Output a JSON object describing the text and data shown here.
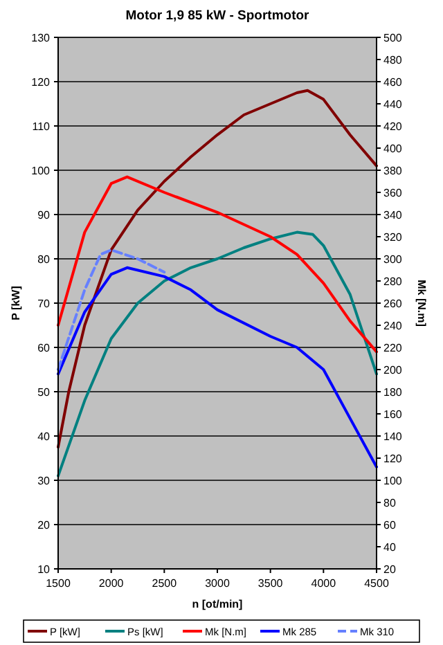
{
  "chart_data": {
    "type": "line",
    "title": "Motor 1,9 85 kW - Sportmotor",
    "xlabel": "n [ot/min]",
    "ylabel": "P [kW]",
    "y2label": "Mk [N.m]",
    "xlim": [
      1500,
      4500
    ],
    "xticks": [
      1500,
      2000,
      2500,
      3000,
      3500,
      4000,
      4500
    ],
    "ylim": [
      10,
      130
    ],
    "yticks": [
      10,
      20,
      30,
      40,
      50,
      60,
      70,
      80,
      90,
      100,
      110,
      120,
      130
    ],
    "y2lim": [
      20,
      500
    ],
    "y2ticks": [
      20,
      40,
      60,
      80,
      100,
      120,
      140,
      160,
      180,
      200,
      220,
      240,
      260,
      280,
      300,
      320,
      340,
      360,
      380,
      400,
      420,
      440,
      460,
      480,
      500
    ],
    "grid": "y",
    "legend": "bottom",
    "marker": "none",
    "series": [
      {
        "name": "P [kW]",
        "color": "#800000",
        "x": [
          1500,
          1600,
          1750,
          2000,
          2250,
          2500,
          2750,
          3000,
          3250,
          3500,
          3750,
          3850,
          4000,
          4250,
          4500
        ],
        "values": [
          37.5,
          50,
          65,
          82,
          91,
          97.5,
          103,
          108,
          112.5,
          115,
          117.5,
          118,
          116,
          108,
          101
        ]
      },
      {
        "name": "Ps [kW]",
        "color": "#008080",
        "x": [
          1500,
          1750,
          2000,
          2250,
          2500,
          2750,
          3000,
          3250,
          3500,
          3750,
          3900,
          4000,
          4250,
          4500
        ],
        "values": [
          31,
          48,
          62,
          70,
          75,
          78,
          80,
          82.5,
          84.5,
          86,
          85.5,
          83,
          72,
          54
        ]
      },
      {
        "name": "Mk [N.m]",
        "color": "#ff0000",
        "axis": "y2",
        "x": [
          1500,
          1750,
          2000,
          2150,
          2500,
          3000,
          3500,
          3750,
          4000,
          4250,
          4500
        ],
        "values": [
          240,
          324,
          368,
          374,
          360,
          342,
          320,
          304,
          278,
          244,
          216
        ]
      },
      {
        "name": "Mk 285",
        "color": "#0000ff",
        "axis": "y2",
        "x": [
          1500,
          1750,
          2000,
          2150,
          2500,
          2750,
          3000,
          3500,
          3750,
          4000,
          4250,
          4500
        ],
        "values": [
          196,
          252,
          286,
          292,
          284,
          272,
          254,
          230,
          220,
          200,
          156,
          112
        ]
      },
      {
        "name": "Mk 310",
        "color": "#6680ff",
        "axis": "y2",
        "line_style": "dashed",
        "x": [
          1500,
          1750,
          1900,
          2000,
          2250,
          2500
        ],
        "values": [
          200,
          272,
          304,
          308,
          300,
          288
        ]
      }
    ]
  }
}
